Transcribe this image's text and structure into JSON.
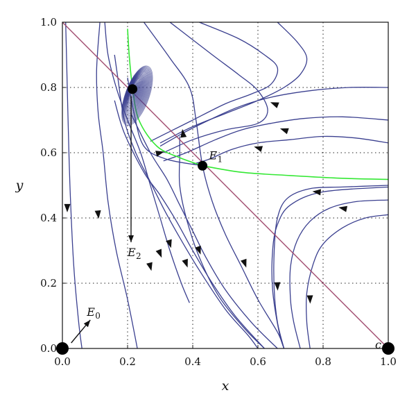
{
  "chart_data": {
    "type": "line",
    "title": "",
    "xlabel": "x",
    "ylabel": "y",
    "xlim": [
      0.0,
      1.0
    ],
    "ylim": [
      0.0,
      1.0
    ],
    "xticks": [
      "0.0",
      "0.2",
      "0.4",
      "0.6",
      "0.8",
      "1.0"
    ],
    "yticks": [
      "0.0",
      "0.2",
      "0.4",
      "0.6",
      "0.8",
      "1.0"
    ],
    "grid": "dotted",
    "colors": {
      "trajectory": "#3a3f8f",
      "separatrix": "#33e833",
      "nullcline": "#a04a6e",
      "point": "#000000"
    },
    "equilibria": [
      {
        "label": "E",
        "sub": "0",
        "x": 0.0,
        "y": 0.0
      },
      {
        "label": "E",
        "sub": "1",
        "x": 0.43,
        "y": 0.56
      },
      {
        "label": "E",
        "sub": "2",
        "x": 0.215,
        "y": 0.795
      },
      {
        "label": "",
        "sub": "",
        "x": 1.0,
        "y": 0.0
      }
    ],
    "corner_label": "c",
    "nullcline": [
      [
        0.0,
        1.0
      ],
      [
        1.0,
        0.0
      ]
    ],
    "separatrix": [
      [
        [
          0.2,
          0.98
        ],
        [
          0.205,
          0.9
        ],
        [
          0.215,
          0.8
        ],
        [
          0.235,
          0.7
        ],
        [
          0.29,
          0.62
        ],
        [
          0.36,
          0.585
        ],
        [
          0.43,
          0.56
        ]
      ],
      [
        [
          0.43,
          0.56
        ],
        [
          0.55,
          0.54
        ],
        [
          0.7,
          0.53
        ],
        [
          0.85,
          0.522
        ],
        [
          1.0,
          0.518
        ]
      ]
    ],
    "trajectories": [
      [
        [
          0.01,
          1.0
        ],
        [
          0.015,
          0.8
        ],
        [
          0.02,
          0.6
        ],
        [
          0.025,
          0.45
        ],
        [
          0.035,
          0.25
        ],
        [
          0.05,
          0.08
        ],
        [
          0.06,
          0.0
        ]
      ],
      [
        [
          0.115,
          1.0
        ],
        [
          0.105,
          0.85
        ],
        [
          0.11,
          0.72
        ],
        [
          0.125,
          0.6
        ],
        [
          0.14,
          0.45
        ],
        [
          0.165,
          0.3
        ],
        [
          0.2,
          0.15
        ],
        [
          0.23,
          0.0
        ]
      ],
      [
        [
          0.13,
          1.0
        ],
        [
          0.14,
          0.9
        ],
        [
          0.165,
          0.8
        ],
        [
          0.2,
          0.7
        ],
        [
          0.24,
          0.6
        ],
        [
          0.27,
          0.5
        ],
        [
          0.3,
          0.4
        ],
        [
          0.33,
          0.3
        ],
        [
          0.365,
          0.2
        ],
        [
          0.39,
          0.14
        ]
      ],
      [
        [
          0.16,
          0.76
        ],
        [
          0.19,
          0.66
        ],
        [
          0.25,
          0.54
        ],
        [
          0.3,
          0.47
        ],
        [
          0.35,
          0.39
        ],
        [
          0.4,
          0.3
        ],
        [
          0.46,
          0.2
        ],
        [
          0.53,
          0.1
        ],
        [
          0.62,
          0.0
        ]
      ],
      [
        [
          0.21,
          0.72
        ],
        [
          0.27,
          0.6
        ],
        [
          0.32,
          0.52
        ],
        [
          0.36,
          0.44
        ],
        [
          0.4,
          0.36
        ],
        [
          0.44,
          0.28
        ],
        [
          0.5,
          0.18
        ],
        [
          0.58,
          0.08
        ],
        [
          0.66,
          0.0
        ]
      ],
      [
        [
          0.16,
          0.9
        ],
        [
          0.17,
          0.83
        ],
        [
          0.19,
          0.7
        ],
        [
          0.225,
          0.6
        ],
        [
          0.265,
          0.52
        ],
        [
          0.31,
          0.43
        ],
        [
          0.36,
          0.34
        ],
        [
          0.42,
          0.24
        ],
        [
          0.5,
          0.12
        ],
        [
          0.57,
          0.04
        ],
        [
          0.6,
          0.0
        ]
      ],
      [
        [
          0.2,
          0.83
        ],
        [
          0.22,
          0.72
        ],
        [
          0.25,
          0.62
        ],
        [
          0.32,
          0.58
        ],
        [
          0.43,
          0.56
        ]
      ],
      [
        [
          0.36,
          0.65
        ],
        [
          0.36,
          0.59
        ],
        [
          0.36,
          0.5
        ],
        [
          0.38,
          0.4
        ],
        [
          0.42,
          0.28
        ],
        [
          0.48,
          0.16
        ],
        [
          0.56,
          0.06
        ],
        [
          0.62,
          0.0
        ]
      ],
      [
        [
          0.25,
          1.0
        ],
        [
          0.33,
          0.89
        ],
        [
          0.39,
          0.8
        ],
        [
          0.41,
          0.7
        ],
        [
          0.43,
          0.56
        ],
        [
          0.46,
          0.45
        ],
        [
          0.5,
          0.35
        ],
        [
          0.55,
          0.25
        ],
        [
          0.6,
          0.15
        ],
        [
          0.66,
          0.05
        ],
        [
          0.68,
          0.0
        ]
      ],
      [
        [
          0.33,
          1.0
        ],
        [
          0.46,
          0.9
        ],
        [
          0.54,
          0.84
        ],
        [
          0.6,
          0.79
        ],
        [
          0.63,
          0.73
        ],
        [
          0.6,
          0.69
        ],
        [
          0.5,
          0.67
        ],
        [
          0.4,
          0.64
        ],
        [
          0.31,
          0.6
        ]
      ],
      [
        [
          0.42,
          1.0
        ],
        [
          0.54,
          0.95
        ],
        [
          0.62,
          0.9
        ],
        [
          0.66,
          0.86
        ],
        [
          0.64,
          0.81
        ],
        [
          0.58,
          0.78
        ],
        [
          0.5,
          0.75
        ],
        [
          0.4,
          0.7
        ],
        [
          0.33,
          0.665
        ],
        [
          0.27,
          0.635
        ]
      ],
      [
        [
          0.66,
          1.0
        ],
        [
          0.72,
          0.94
        ],
        [
          0.75,
          0.89
        ],
        [
          0.73,
          0.84
        ],
        [
          0.68,
          0.8
        ],
        [
          0.6,
          0.76
        ],
        [
          0.5,
          0.72
        ],
        [
          0.4,
          0.68
        ],
        [
          0.3,
          0.63
        ]
      ],
      [
        [
          1.0,
          0.8
        ],
        [
          0.88,
          0.8
        ],
        [
          0.76,
          0.79
        ],
        [
          0.64,
          0.77
        ],
        [
          0.54,
          0.74
        ],
        [
          0.45,
          0.7
        ],
        [
          0.37,
          0.66
        ],
        [
          0.3,
          0.62
        ]
      ],
      [
        [
          1.0,
          0.7
        ],
        [
          0.86,
          0.71
        ],
        [
          0.74,
          0.705
        ],
        [
          0.64,
          0.69
        ],
        [
          0.55,
          0.67
        ],
        [
          0.47,
          0.64
        ],
        [
          0.38,
          0.6
        ],
        [
          0.31,
          0.575
        ]
      ],
      [
        [
          1.0,
          0.63
        ],
        [
          0.9,
          0.645
        ],
        [
          0.8,
          0.65
        ],
        [
          0.7,
          0.64
        ],
        [
          0.6,
          0.63
        ],
        [
          0.52,
          0.61
        ],
        [
          0.45,
          0.58
        ],
        [
          0.4,
          0.565
        ]
      ],
      [
        [
          1.0,
          0.455
        ],
        [
          0.9,
          0.45
        ],
        [
          0.82,
          0.43
        ],
        [
          0.76,
          0.39
        ],
        [
          0.72,
          0.33
        ],
        [
          0.7,
          0.25
        ],
        [
          0.7,
          0.15
        ],
        [
          0.71,
          0.08
        ],
        [
          0.73,
          0.0
        ]
      ],
      [
        [
          1.0,
          0.5
        ],
        [
          0.86,
          0.495
        ],
        [
          0.76,
          0.49
        ],
        [
          0.69,
          0.46
        ],
        [
          0.66,
          0.4
        ],
        [
          0.65,
          0.3
        ],
        [
          0.65,
          0.18
        ],
        [
          0.66,
          0.08
        ],
        [
          0.68,
          0.0
        ]
      ],
      [
        [
          1.0,
          0.495
        ],
        [
          0.8,
          0.48
        ],
        [
          0.7,
          0.44
        ],
        [
          0.66,
          0.38
        ],
        [
          0.645,
          0.3
        ],
        [
          0.645,
          0.18
        ],
        [
          0.665,
          0.05
        ],
        [
          0.68,
          0.0
        ]
      ],
      [
        [
          1.0,
          0.41
        ],
        [
          0.93,
          0.4
        ],
        [
          0.86,
          0.37
        ],
        [
          0.8,
          0.32
        ],
        [
          0.77,
          0.26
        ],
        [
          0.75,
          0.17
        ],
        [
          0.75,
          0.08
        ],
        [
          0.76,
          0.0
        ]
      ]
    ],
    "arrows": [
      [
        0.015,
        0.43,
        0.0,
        -1.0
      ],
      [
        0.11,
        0.41,
        0.1,
        -1.0
      ],
      [
        0.27,
        0.25,
        0.25,
        -1.0
      ],
      [
        0.33,
        0.32,
        0.3,
        -1.0
      ],
      [
        0.42,
        0.3,
        0.35,
        -1.0
      ],
      [
        0.38,
        0.26,
        0.35,
        -1.0
      ],
      [
        0.3,
        0.29,
        0.4,
        -1.0
      ],
      [
        0.56,
        0.26,
        0.35,
        -1.0
      ],
      [
        0.66,
        0.19,
        0.05,
        -1.0
      ],
      [
        0.76,
        0.15,
        0.03,
        -1.0
      ],
      [
        0.3,
        0.6,
        1.0,
        0.25
      ],
      [
        0.37,
        0.66,
        -0.15,
        1.0
      ],
      [
        0.65,
        0.75,
        -1.0,
        0.4
      ],
      [
        0.68,
        0.67,
        -1.0,
        0.35
      ],
      [
        0.6,
        0.615,
        -1.0,
        0.3
      ],
      [
        0.78,
        0.48,
        -1.0,
        0.1
      ],
      [
        0.86,
        0.43,
        -1.0,
        0.2
      ]
    ],
    "annotations": [
      {
        "label": "E",
        "sub": "1",
        "x": 0.45,
        "y": 0.58,
        "point_to": null
      },
      {
        "label": "E",
        "sub": "2",
        "x": 0.2,
        "y": 0.3,
        "point_to": [
          0.215,
          0.795
        ]
      },
      {
        "label": "E",
        "sub": "0",
        "x": 0.075,
        "y": 0.1,
        "point_to": [
          0.01,
          0.0
        ]
      }
    ]
  }
}
